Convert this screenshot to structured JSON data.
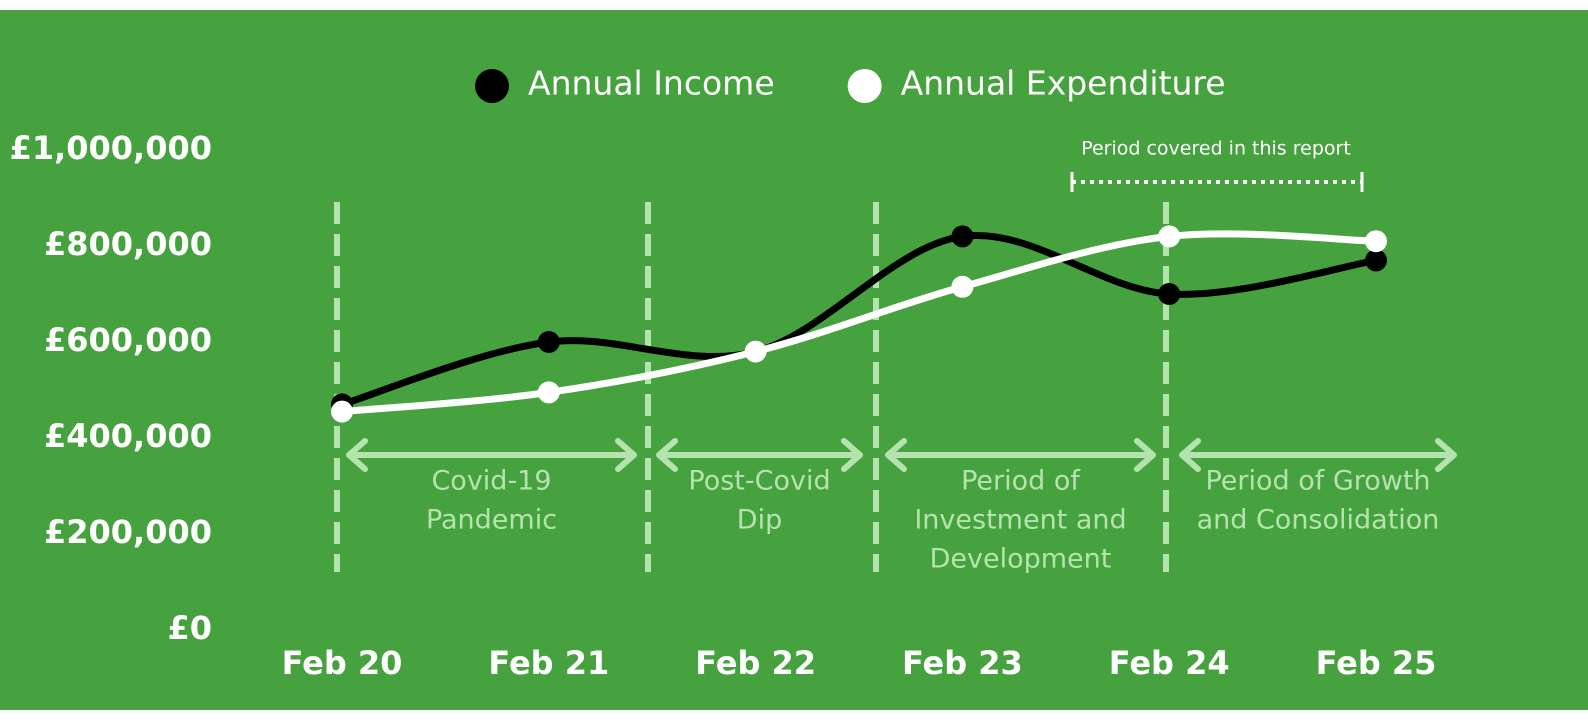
{
  "chart_data": {
    "type": "line",
    "categories": [
      "Feb 20",
      "Feb 21",
      "Feb 22",
      "Feb 23",
      "Feb 24",
      "Feb 25"
    ],
    "series": [
      {
        "name": "Annual Income",
        "color": "#000000",
        "values": [
          470000,
          600000,
          580000,
          820000,
          700000,
          770000
        ]
      },
      {
        "name": "Annual Expenditure",
        "color": "#ffffff",
        "values": [
          455000,
          495000,
          580000,
          715000,
          820000,
          810000
        ]
      }
    ],
    "ylim": [
      0,
      1000000
    ],
    "yticks": [
      {
        "value": 0,
        "label": "£0"
      },
      {
        "value": 200000,
        "label": "£200,000"
      },
      {
        "value": 400000,
        "label": "£400,000"
      },
      {
        "value": 600000,
        "label": "£600,000"
      },
      {
        "value": 800000,
        "label": "£800,000"
      },
      {
        "value": 1000000,
        "label": "£1,000,000"
      }
    ],
    "periods": [
      {
        "lines": [
          "Covid-19",
          "Pandemic"
        ]
      },
      {
        "lines": [
          "Post-Covid",
          "Dip"
        ]
      },
      {
        "lines": [
          "Period of",
          "Investment and",
          "Development"
        ]
      },
      {
        "lines": [
          "Period of Growth",
          "and Consolidation"
        ]
      }
    ],
    "report_annotation": "Period covered in this report"
  }
}
